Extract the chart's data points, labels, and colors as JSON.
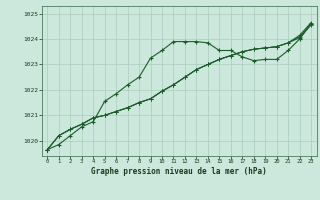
{
  "title": "Graphe pression niveau de la mer (hPa)",
  "bg_color": "#cce8dc",
  "grid_color": "#aaccbb",
  "line_color": "#1a5c28",
  "xlim": [
    -0.5,
    23.5
  ],
  "ylim": [
    1019.4,
    1025.3
  ],
  "xticks": [
    0,
    1,
    2,
    3,
    4,
    5,
    6,
    7,
    8,
    9,
    10,
    11,
    12,
    13,
    14,
    15,
    16,
    17,
    18,
    19,
    20,
    21,
    22,
    23
  ],
  "yticks": [
    1020,
    1021,
    1022,
    1023,
    1024,
    1025
  ],
  "series0": [
    1019.65,
    1019.85,
    1020.2,
    1020.55,
    1020.75,
    1021.55,
    1021.85,
    1022.2,
    1022.5,
    1023.25,
    1023.55,
    1023.9,
    1023.9,
    1023.9,
    1023.85,
    1023.55,
    1023.55,
    1023.3,
    1023.15,
    1023.2,
    1023.2,
    1023.55,
    1024.0,
    1024.6
  ],
  "series1": [
    1019.65,
    1020.2,
    1020.45,
    1020.65,
    1020.9,
    1021.0,
    1021.15,
    1021.3,
    1021.5,
    1021.65,
    1021.95,
    1022.2,
    1022.5,
    1022.8,
    1023.0,
    1023.2,
    1023.35,
    1023.5,
    1023.6,
    1023.65,
    1023.7,
    1023.85,
    1024.05,
    1024.55
  ],
  "series2": [
    1019.65,
    1020.2,
    1020.45,
    1020.65,
    1020.9,
    1021.0,
    1021.15,
    1021.3,
    1021.5,
    1021.65,
    1021.95,
    1022.2,
    1022.5,
    1022.8,
    1023.0,
    1023.2,
    1023.35,
    1023.5,
    1023.6,
    1023.65,
    1023.7,
    1023.85,
    1024.1,
    1024.6
  ],
  "series3": [
    1019.65,
    1020.2,
    1020.45,
    1020.65,
    1020.9,
    1021.0,
    1021.15,
    1021.3,
    1021.5,
    1021.65,
    1021.95,
    1022.2,
    1022.5,
    1022.8,
    1023.0,
    1023.2,
    1023.35,
    1023.5,
    1023.6,
    1023.65,
    1023.7,
    1023.85,
    1024.15,
    1024.65
  ]
}
